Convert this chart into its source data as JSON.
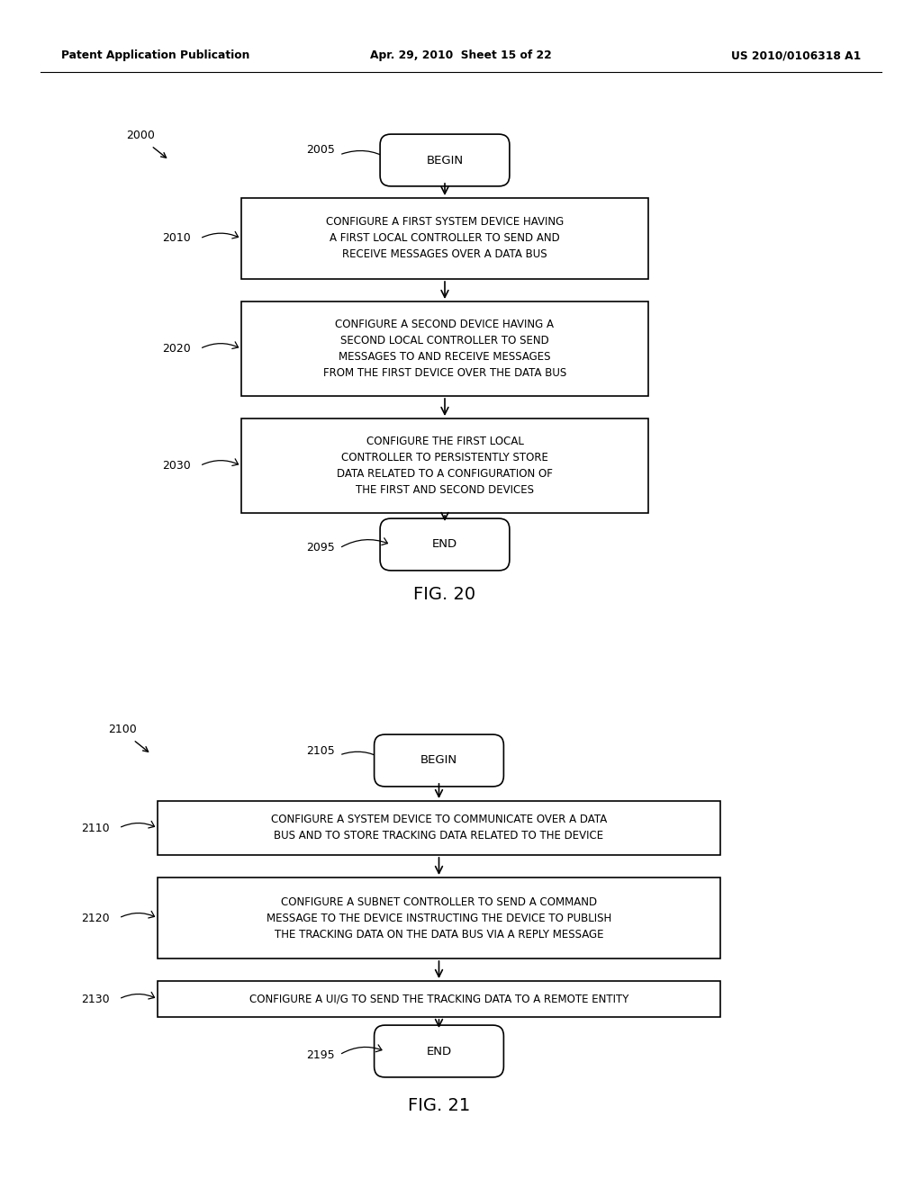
{
  "bg_color": "#ffffff",
  "header_left": "Patent Application Publication",
  "header_mid": "Apr. 29, 2010  Sheet 15 of 22",
  "header_right": "US 2010/0106318 A1",
  "fig20": {
    "diagram_label": "2000",
    "fig_label": "FIG. 20",
    "begin_label": "2005",
    "begin_text": "BEGIN",
    "end_label": "2095",
    "end_text": "END",
    "boxes": [
      {
        "label": "2010",
        "text": "CONFIGURE A FIRST SYSTEM DEVICE HAVING\nA FIRST LOCAL CONTROLLER TO SEND AND\nRECEIVE MESSAGES OVER A DATA BUS"
      },
      {
        "label": "2020",
        "text": "CONFIGURE A SECOND DEVICE HAVING A\nSECOND LOCAL CONTROLLER TO SEND\nMESSAGES TO AND RECEIVE MESSAGES\nFROM THE FIRST DEVICE OVER THE DATA BUS"
      },
      {
        "label": "2030",
        "text": "CONFIGURE THE FIRST LOCAL\nCONTROLLER TO PERSISTENTLY STORE\nDATA RELATED TO A CONFIGURATION OF\nTHE FIRST AND SECOND DEVICES"
      }
    ]
  },
  "fig21": {
    "diagram_label": "2100",
    "fig_label": "FIG. 21",
    "begin_label": "2105",
    "begin_text": "BEGIN",
    "end_label": "2195",
    "end_text": "END",
    "boxes": [
      {
        "label": "2110",
        "text": "CONFIGURE A SYSTEM DEVICE TO COMMUNICATE OVER A DATA\nBUS AND TO STORE TRACKING DATA RELATED TO THE DEVICE"
      },
      {
        "label": "2120",
        "text": "CONFIGURE A SUBNET CONTROLLER TO SEND A COMMAND\nMESSAGE TO THE DEVICE INSTRUCTING THE DEVICE TO PUBLISH\nTHE TRACKING DATA ON THE DATA BUS VIA A REPLY MESSAGE"
      },
      {
        "label": "2130",
        "text": "CONFIGURE A UI/G TO SEND THE TRACKING DATA TO A REMOTE ENTITY"
      }
    ]
  }
}
